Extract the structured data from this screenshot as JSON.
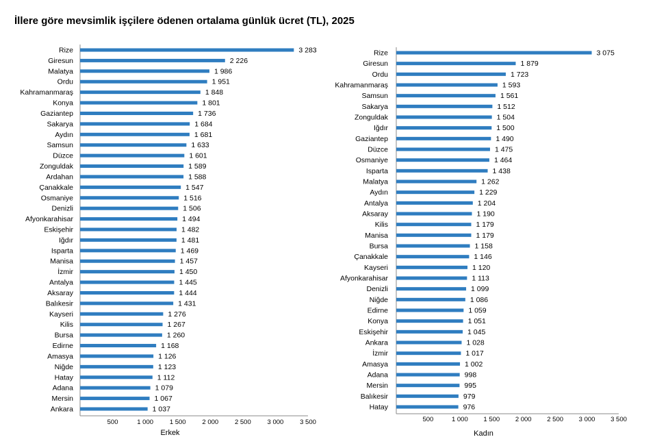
{
  "title": "İllere göre mevsimlik işçilere ödenen ortalama günlük ücret (TL), 2025",
  "colors": {
    "bar": "#2f7dc0"
  },
  "chart_data": [
    {
      "type": "bar",
      "orientation": "horizontal",
      "xlabel": "Erkek",
      "xlim": [
        0,
        3500
      ],
      "xticks": [
        "500",
        "1 000",
        "1 500",
        "2 000",
        "2 500",
        "3 000",
        "3 500"
      ],
      "categories": [
        "Rize",
        "Giresun",
        "Malatya",
        "Ordu",
        "Kahramanmaraş",
        "Konya",
        "Gaziantep",
        "Sakarya",
        "Aydın",
        "Samsun",
        "Düzce",
        "Zonguldak",
        "Ardahan",
        "Çanakkale",
        "Osmaniye",
        "Denizli",
        "Afyonkarahisar",
        "Eskişehir",
        "Iğdır",
        "Isparta",
        "Manisa",
        "İzmir",
        "Antalya",
        "Aksaray",
        "Balıkesir",
        "Kayseri",
        "Kilis",
        "Bursa",
        "Edirne",
        "Amasya",
        "Niğde",
        "Hatay",
        "Adana",
        "Mersin",
        "Ankara"
      ],
      "values": [
        3283,
        2226,
        1986,
        1951,
        1848,
        1801,
        1736,
        1684,
        1681,
        1633,
        1601,
        1589,
        1588,
        1547,
        1516,
        1506,
        1494,
        1482,
        1481,
        1469,
        1457,
        1450,
        1445,
        1444,
        1431,
        1276,
        1267,
        1260,
        1168,
        1126,
        1123,
        1112,
        1079,
        1067,
        1037
      ],
      "labels": [
        "3 283",
        "2 226",
        "1 986",
        "1 951",
        "1 848",
        "1 801",
        "1 736",
        "1 684",
        "1 681",
        "1 633",
        "1 601",
        "1 589",
        "1 588",
        "1 547",
        "1 516",
        "1 506",
        "1 494",
        "1 482",
        "1 481",
        "1 469",
        "1 457",
        "1 450",
        "1 445",
        "1 444",
        "1 431",
        "1 276",
        "1 267",
        "1 260",
        "1 168",
        "1 126",
        "1 123",
        "1 112",
        "1 079",
        "1 067",
        "1 037"
      ]
    },
    {
      "type": "bar",
      "orientation": "horizontal",
      "xlabel": "Kadın",
      "xlim": [
        0,
        3500
      ],
      "xticks": [
        "500",
        "1 000",
        "1 500",
        "2 000",
        "2 500",
        "3 000",
        "3 500"
      ],
      "categories": [
        "Rize",
        "Giresun",
        "Ordu",
        "Kahramanmaraş",
        "Samsun",
        "Sakarya",
        "Zonguldak",
        "Iğdır",
        "Gaziantep",
        "Düzce",
        "Osmaniye",
        "Isparta",
        "Malatya",
        "Aydın",
        "Antalya",
        "Aksaray",
        "Kilis",
        "Manisa",
        "Bursa",
        "Çanakkale",
        "Kayseri",
        "Afyonkarahisar",
        "Denizli",
        "Niğde",
        "Edirne",
        "Konya",
        "Eskişehir",
        "Ankara",
        "İzmir",
        "Amasya",
        "Adana",
        "Mersin",
        "Balıkesir",
        "Hatay"
      ],
      "values": [
        3075,
        1879,
        1723,
        1593,
        1561,
        1512,
        1504,
        1500,
        1490,
        1475,
        1464,
        1438,
        1262,
        1229,
        1204,
        1190,
        1179,
        1179,
        1158,
        1146,
        1120,
        1113,
        1099,
        1086,
        1059,
        1051,
        1045,
        1028,
        1017,
        1002,
        998,
        995,
        979,
        976
      ],
      "labels": [
        "3 075",
        "1 879",
        "1 723",
        "1 593",
        "1 561",
        "1 512",
        "1 504",
        "1 500",
        "1 490",
        "1 475",
        "1 464",
        "1 438",
        "1 262",
        "1 229",
        "1 204",
        "1 190",
        "1 179",
        "1 179",
        "1 158",
        "1 146",
        "1 120",
        "1 113",
        "1 099",
        "1 086",
        "1 059",
        "1 051",
        "1 045",
        "1 028",
        "1 017",
        "1 002",
        "998",
        "995",
        "979",
        "976"
      ]
    }
  ]
}
